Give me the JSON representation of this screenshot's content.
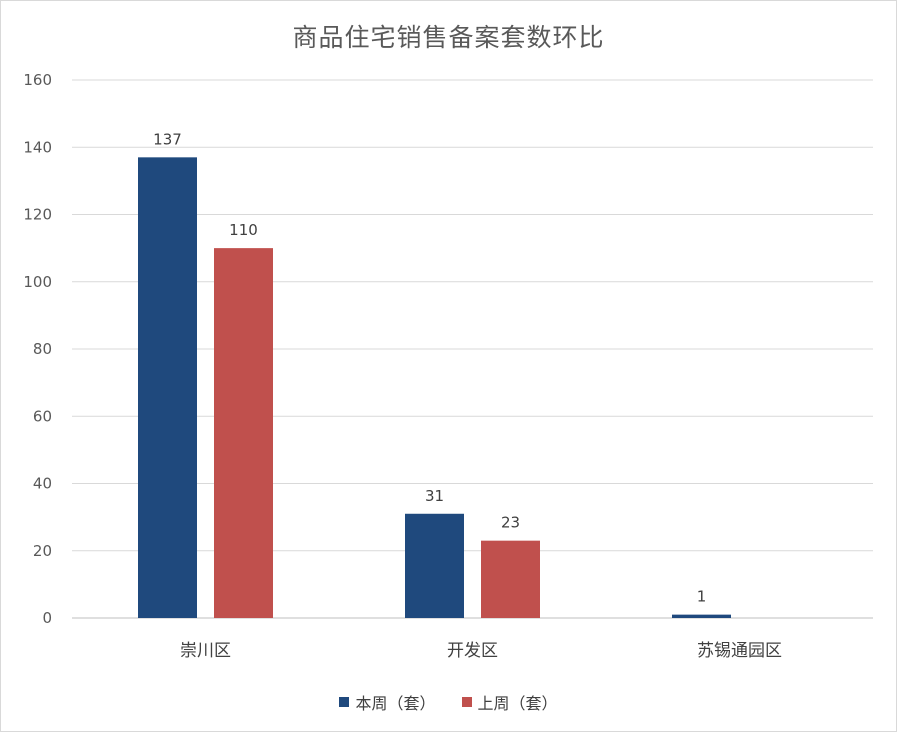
{
  "chart_data": {
    "type": "bar",
    "title": "商品住宅销售备案套数环比",
    "categories": [
      "崇川区",
      "开发区",
      "苏锡通园区"
    ],
    "series": [
      {
        "name": "本周（套）",
        "values": [
          137,
          31,
          1
        ],
        "labels": [
          "137",
          "31",
          "1"
        ],
        "color": "#1f497d"
      },
      {
        "name": "上周（套）",
        "values": [
          110,
          23,
          null
        ],
        "labels": [
          "110",
          "23",
          ""
        ],
        "color": "#c0504d"
      }
    ],
    "ylim": [
      0,
      160
    ],
    "yticks": [
      0,
      20,
      40,
      60,
      80,
      100,
      120,
      140,
      160
    ],
    "grid": true,
    "legend_position": "bottom"
  }
}
